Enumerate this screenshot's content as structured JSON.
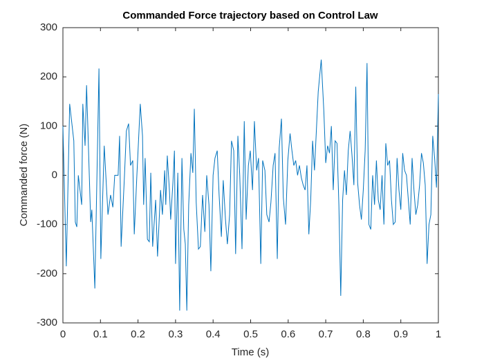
{
  "chart_data": {
    "type": "line",
    "title": "Commanded Force trajectory based on Control Law",
    "xlabel": "Time (s)",
    "ylabel": "Commanded force (N)",
    "x": [
      0,
      0.009,
      0.018,
      0.029,
      0.033,
      0.037,
      0.041,
      0.05,
      0.053,
      0.059,
      0.063,
      0.074,
      0.077,
      0.085,
      0.096,
      0.101,
      0.11,
      0.12,
      0.127,
      0.133,
      0.138,
      0.147,
      0.151,
      0.155,
      0.164,
      0.169,
      0.175,
      0.18,
      0.186,
      0.19,
      0.197,
      0.206,
      0.212,
      0.215,
      0.219,
      0.225,
      0.23,
      0.234,
      0.239,
      0.247,
      0.252,
      0.26,
      0.265,
      0.271,
      0.274,
      0.278,
      0.284,
      0.287,
      0.293,
      0.297,
      0.3,
      0.306,
      0.311,
      0.317,
      0.322,
      0.326,
      0.33,
      0.335,
      0.341,
      0.346,
      0.35,
      0.355,
      0.361,
      0.366,
      0.372,
      0.378,
      0.383,
      0.389,
      0.394,
      0.4,
      0.405,
      0.411,
      0.416,
      0.422,
      0.427,
      0.433,
      0.438,
      0.444,
      0.449,
      0.455,
      0.46,
      0.466,
      0.471,
      0.477,
      0.483,
      0.488,
      0.494,
      0.499,
      0.505,
      0.51,
      0.516,
      0.521,
      0.527,
      0.532,
      0.538,
      0.543,
      0.549,
      0.554,
      0.56,
      0.565,
      0.571,
      0.576,
      0.582,
      0.587,
      0.593,
      0.599,
      0.605,
      0.61,
      0.615,
      0.62,
      0.625,
      0.63,
      0.635,
      0.64,
      0.645,
      0.65,
      0.655,
      0.66,
      0.665,
      0.67,
      0.675,
      0.68,
      0.688,
      0.695,
      0.7,
      0.705,
      0.71,
      0.715,
      0.72,
      0.725,
      0.73,
      0.735,
      0.74,
      0.745,
      0.75,
      0.755,
      0.76,
      0.765,
      0.77,
      0.775,
      0.78,
      0.785,
      0.79,
      0.795,
      0.8,
      0.805,
      0.81,
      0.815,
      0.82,
      0.825,
      0.83,
      0.835,
      0.84,
      0.845,
      0.85,
      0.855,
      0.86,
      0.865,
      0.87,
      0.875,
      0.88,
      0.885,
      0.89,
      0.895,
      0.9,
      0.905,
      0.91,
      0.915,
      0.92,
      0.925,
      0.93,
      0.935,
      0.94,
      0.945,
      0.95,
      0.955,
      0.96,
      0.965,
      0.97,
      0.975,
      0.98,
      0.985,
      0.99,
      0.995,
      1
    ],
    "series": [
      {
        "color": "#0072bd",
        "values": [
          100,
          -185,
          145,
          70,
          -95,
          -105,
          0,
          -60,
          145,
          60,
          183,
          -95,
          -70,
          -230,
          217,
          -170,
          60,
          -80,
          -40,
          -65,
          0,
          0,
          80,
          -145,
          0,
          90,
          105,
          20,
          30,
          -120,
          0,
          145,
          80,
          -60,
          35,
          -130,
          -135,
          5,
          -145,
          -50,
          -165,
          -30,
          -80,
          10,
          -60,
          40,
          -35,
          -90,
          -15,
          50,
          -180,
          5,
          -275,
          35,
          -110,
          -140,
          -275,
          -60,
          45,
          5,
          135,
          -55,
          -150,
          -145,
          -40,
          -115,
          0,
          -60,
          -195,
          0,
          35,
          50,
          -40,
          -125,
          -10,
          -90,
          -140,
          -80,
          70,
          50,
          -160,
          80,
          0,
          -150,
          110,
          -90,
          20,
          50,
          -30,
          110,
          10,
          35,
          -180,
          30,
          10,
          -80,
          -95,
          -55,
          20,
          45,
          -170,
          55,
          115,
          -45,
          -100,
          30,
          85,
          50,
          20,
          30,
          0,
          20,
          -5,
          -20,
          -30,
          20,
          -120,
          -50,
          70,
          10,
          90,
          170,
          235,
          130,
          25,
          60,
          45,
          100,
          -30,
          70,
          65,
          -60,
          -245,
          -50,
          10,
          -40,
          50,
          90,
          40,
          -20,
          180,
          -15,
          -60,
          -90,
          -30,
          50,
          228,
          -100,
          -110,
          0,
          -60,
          30,
          -50,
          -70,
          0,
          -100,
          65,
          20,
          30,
          -50,
          -100,
          -95,
          35,
          -30,
          -70,
          45,
          10,
          0,
          -50,
          -100,
          35,
          -30,
          -80,
          -60,
          -20,
          45,
          25,
          -20,
          -180,
          -100,
          -80,
          80,
          35,
          -25,
          165
        ]
      }
    ],
    "xlim": [
      0,
      1
    ],
    "xticks": [
      0,
      0.1,
      0.2,
      0.3,
      0.4,
      0.5,
      0.6,
      0.7,
      0.8,
      0.9,
      1
    ],
    "ylim": [
      -300,
      300
    ],
    "yticks": [
      -300,
      -200,
      -100,
      0,
      100,
      200,
      300
    ],
    "grid": false
  }
}
